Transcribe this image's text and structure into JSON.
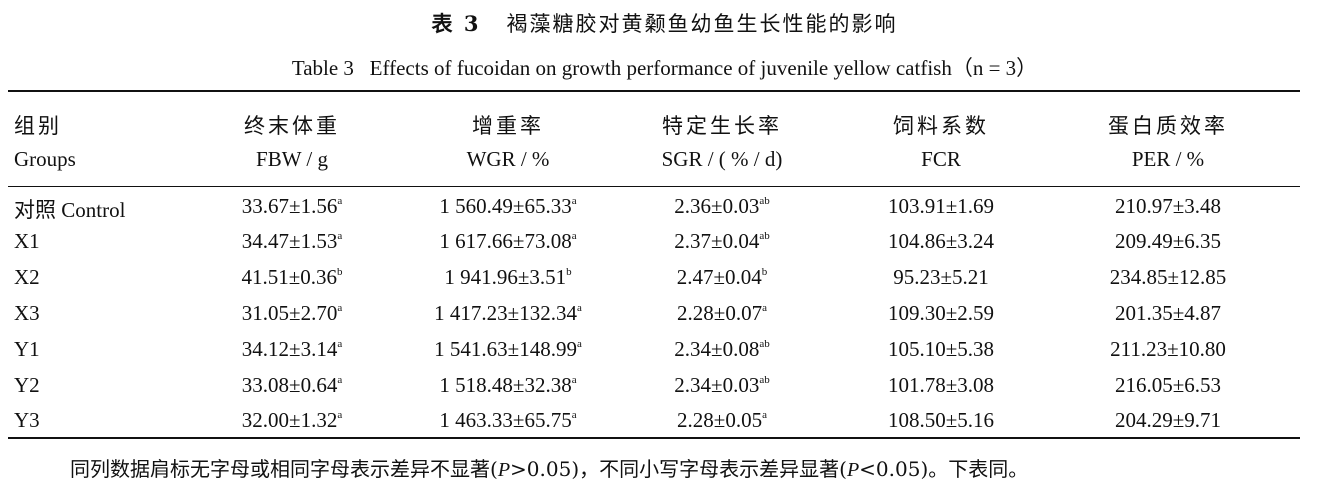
{
  "caption": {
    "zh_label": "表 3",
    "zh_title": "褐藻糖胶对黄颡鱼幼鱼生长性能的影响",
    "en_label": "Table 3",
    "en_title": "Effects of fucoidan on growth performance of juvenile yellow catfish",
    "en_n": "（n = 3）"
  },
  "headers": [
    {
      "zh": "组别",
      "en": "Groups"
    },
    {
      "zh": "终末体重",
      "en": "FBW / g"
    },
    {
      "zh": "增重率",
      "en": "WGR / %"
    },
    {
      "zh": "特定生长率",
      "en": "SGR / ( % / d)"
    },
    {
      "zh": "饲料系数",
      "en": "FCR"
    },
    {
      "zh": "蛋白质效率",
      "en": "PER / %"
    }
  ],
  "rows": [
    {
      "group": "对照 Control",
      "fbw": "33.67±1.56",
      "fbw_sup": "a",
      "wgr": "1 560.49±65.33",
      "wgr_sup": "a",
      "sgr": "2.36±0.03",
      "sgr_sup": "ab",
      "fcr": "103.91±1.69",
      "per": "210.97±3.48"
    },
    {
      "group": "X1",
      "fbw": "34.47±1.53",
      "fbw_sup": "a",
      "wgr": "1 617.66±73.08",
      "wgr_sup": "a",
      "sgr": "2.37±0.04",
      "sgr_sup": "ab",
      "fcr": "104.86±3.24",
      "per": "209.49±6.35"
    },
    {
      "group": "X2",
      "fbw": "41.51±0.36",
      "fbw_sup": "b",
      "wgr": "1 941.96±3.51",
      "wgr_sup": "b",
      "sgr": "2.47±0.04",
      "sgr_sup": "b",
      "fcr": "95.23±5.21",
      "per": "234.85±12.85"
    },
    {
      "group": "X3",
      "fbw": "31.05±2.70",
      "fbw_sup": "a",
      "wgr": "1 417.23±132.34",
      "wgr_sup": "a",
      "sgr": "2.28±0.07",
      "sgr_sup": "a",
      "fcr": "109.30±2.59",
      "per": "201.35±4.87"
    },
    {
      "group": "Y1",
      "fbw": "34.12±3.14",
      "fbw_sup": "a",
      "wgr": "1 541.63±148.99",
      "wgr_sup": "a",
      "sgr": "2.34±0.08",
      "sgr_sup": "ab",
      "fcr": "105.10±5.38",
      "per": "211.23±10.80"
    },
    {
      "group": "Y2",
      "fbw": "33.08±0.64",
      "fbw_sup": "a",
      "wgr": "1 518.48±32.38",
      "wgr_sup": "a",
      "sgr": "2.34±0.03",
      "sgr_sup": "ab",
      "fcr": "101.78±3.08",
      "per": "216.05±6.53"
    },
    {
      "group": "Y3",
      "fbw": "32.00±1.32",
      "fbw_sup": "a",
      "wgr": "1 463.33±65.75",
      "wgr_sup": "a",
      "sgr": "2.28±0.05",
      "sgr_sup": "a",
      "fcr": "108.50±5.16",
      "per": "204.29±9.71"
    }
  ],
  "note": {
    "part1": "同列数据肩标无字母或相同字母表示差异不显著(",
    "p1": "P",
    "part2": ">0.05)，不同小写字母表示差异显著(",
    "p2": "P",
    "part3": "<0.05)。下表同。"
  }
}
